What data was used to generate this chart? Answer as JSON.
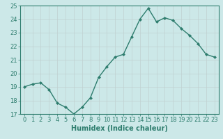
{
  "x": [
    0,
    1,
    2,
    3,
    4,
    5,
    6,
    7,
    8,
    9,
    10,
    11,
    12,
    13,
    14,
    15,
    16,
    17,
    18,
    19,
    20,
    21,
    22,
    23
  ],
  "y": [
    19.0,
    19.2,
    19.3,
    18.8,
    17.8,
    17.5,
    17.0,
    17.5,
    18.2,
    19.7,
    20.5,
    21.2,
    21.4,
    22.7,
    24.0,
    24.8,
    23.8,
    24.1,
    23.9,
    23.3,
    22.8,
    22.2,
    21.4,
    21.2
  ],
  "xlabel": "Humidex (Indice chaleur)",
  "ylim": [
    17,
    25
  ],
  "xlim": [
    -0.5,
    23.5
  ],
  "yticks": [
    17,
    18,
    19,
    20,
    21,
    22,
    23,
    24,
    25
  ],
  "xticks": [
    0,
    1,
    2,
    3,
    4,
    5,
    6,
    7,
    8,
    9,
    10,
    11,
    12,
    13,
    14,
    15,
    16,
    17,
    18,
    19,
    20,
    21,
    22,
    23
  ],
  "line_color": "#2e7d6e",
  "bg_color": "#cce8e8",
  "grid_color": "#b8d4d4",
  "label_fontsize": 7,
  "tick_fontsize": 6
}
